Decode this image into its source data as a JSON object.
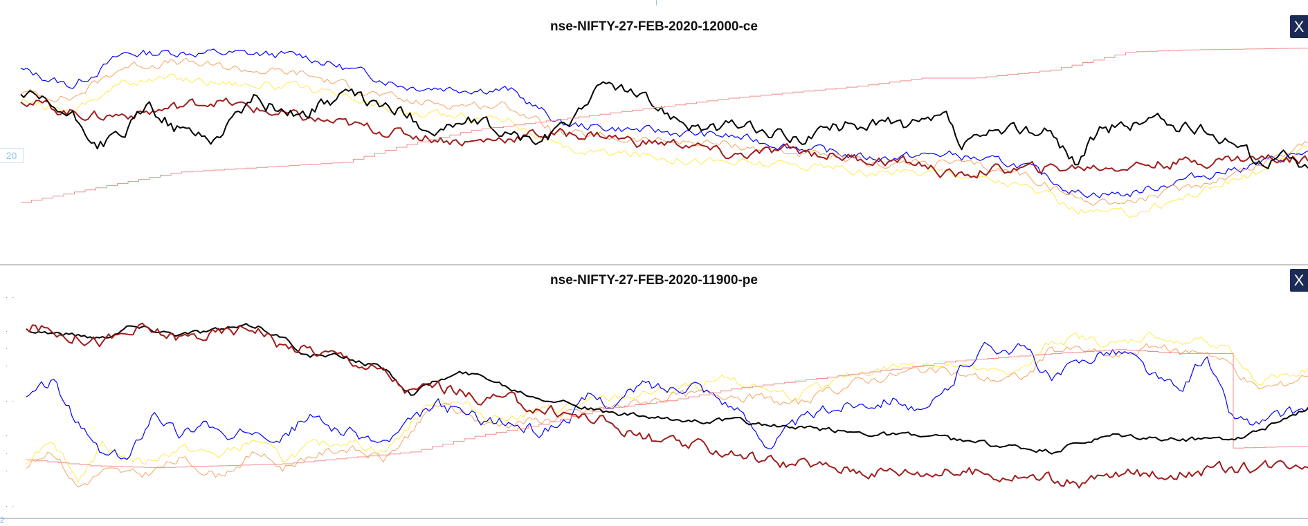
{
  "page": {
    "badge_value": "20",
    "bottom_corner_label": "2",
    "close_label": "X"
  },
  "chart_data": [
    {
      "type": "line",
      "title": "nse-NIFTY-27-FEB-2020-12000-ce",
      "xlabel": "",
      "ylabel": "",
      "ylim": [
        0,
        100
      ],
      "grid": false,
      "series": [
        {
          "color": "#0000ff",
          "width": 1.2,
          "noise": 1.8,
          "x": [
            0,
            4,
            8,
            12,
            18,
            22,
            30,
            38,
            42,
            48,
            55,
            62,
            66,
            72,
            78,
            82,
            86,
            90,
            96,
            100
          ],
          "y": [
            84,
            76,
            92,
            93,
            92,
            91,
            76,
            74,
            57,
            54,
            51,
            44,
            40,
            42,
            36,
            23,
            22,
            29,
            37,
            43
          ]
        },
        {
          "color": "#f4a460",
          "width": 1.0,
          "noise": 1.8,
          "x": [
            0,
            4,
            8,
            12,
            18,
            22,
            30,
            38,
            42,
            48,
            55,
            62,
            66,
            72,
            78,
            82,
            86,
            90,
            96,
            100
          ],
          "y": [
            73,
            70,
            86,
            88,
            84,
            82,
            68,
            66,
            52,
            49,
            47,
            41,
            37,
            38,
            32,
            20,
            18,
            24,
            36,
            49
          ]
        },
        {
          "color": "#ffe94a",
          "width": 1.0,
          "noise": 1.8,
          "x": [
            0,
            4,
            8,
            12,
            18,
            22,
            30,
            38,
            42,
            48,
            55,
            62,
            66,
            72,
            78,
            82,
            86,
            90,
            96,
            100
          ],
          "y": [
            68,
            64,
            78,
            80,
            77,
            75,
            62,
            60,
            44,
            42,
            38,
            36,
            32,
            34,
            26,
            14,
            12,
            20,
            33,
            44
          ]
        },
        {
          "color": "#a01c1c",
          "width": 2.0,
          "noise": 2.2,
          "x": [
            0,
            3,
            6,
            10,
            15,
            20,
            25,
            30,
            35,
            40,
            45,
            48,
            52,
            55,
            60,
            65,
            70,
            72,
            73,
            75,
            80,
            85,
            90,
            95,
            100
          ],
          "y": [
            70,
            64,
            61,
            63,
            69,
            62,
            57,
            52,
            48,
            52,
            52,
            48,
            47,
            41,
            44,
            40,
            37,
            32,
            31,
            34,
            35,
            36,
            38,
            40,
            40
          ]
        },
        {
          "color": "#000000",
          "width": 2.0,
          "noise": 2.8,
          "x": [
            0,
            4,
            6,
            8,
            10,
            12,
            15,
            18,
            20,
            22,
            25,
            28,
            30,
            32,
            35,
            38,
            40,
            42,
            44,
            46,
            48,
            50,
            52,
            54,
            56,
            58,
            60,
            62,
            64,
            66,
            70,
            72,
            73,
            75,
            78,
            80,
            82,
            84,
            86,
            88,
            90,
            92,
            94,
            96,
            98,
            100
          ],
          "y": [
            72,
            60,
            47,
            52,
            66,
            55,
            50,
            70,
            65,
            62,
            72,
            66,
            62,
            54,
            58,
            52,
            48,
            53,
            70,
            78,
            70,
            64,
            58,
            54,
            57,
            52,
            50,
            53,
            56,
            58,
            56,
            60,
            45,
            50,
            55,
            52,
            38,
            55,
            56,
            60,
            55,
            53,
            50,
            38,
            42,
            34
          ]
        },
        {
          "color": "#f08c8c",
          "width": 1.0,
          "noise": 0,
          "step": true,
          "x": [
            0,
            12,
            25,
            30,
            35,
            40,
            45,
            50,
            55,
            60,
            65,
            70,
            74,
            80,
            86,
            90,
            100
          ],
          "y": [
            18,
            33,
            38,
            47,
            54,
            58,
            62,
            66,
            70,
            73,
            76,
            80,
            80,
            84,
            93,
            94,
            95
          ]
        }
      ]
    },
    {
      "type": "line",
      "title": "nse-NIFTY-27-FEB-2020-11900-pe",
      "xlabel": "",
      "ylabel": "",
      "ylim": [
        0,
        100
      ],
      "grid": false,
      "series": [
        {
          "color": "#ffe94a",
          "width": 1.0,
          "noise": 2.0,
          "x": [
            0,
            2,
            4,
            6,
            9,
            12,
            15,
            18,
            20,
            22,
            25,
            28,
            32,
            34,
            36,
            40,
            45,
            50,
            55,
            58,
            60,
            65,
            70,
            75,
            78,
            80,
            82,
            85,
            88,
            90,
            92,
            94,
            96,
            98,
            100
          ],
          "y": [
            22,
            34,
            12,
            30,
            20,
            28,
            24,
            32,
            22,
            28,
            32,
            26,
            54,
            50,
            44,
            46,
            52,
            57,
            62,
            58,
            54,
            66,
            72,
            66,
            68,
            82,
            84,
            80,
            86,
            80,
            84,
            76,
            62,
            65,
            68
          ]
        },
        {
          "color": "#f4a460",
          "width": 1.0,
          "noise": 2.0,
          "x": [
            0,
            2,
            4,
            6,
            9,
            12,
            15,
            18,
            20,
            22,
            25,
            28,
            32,
            34,
            36,
            40,
            45,
            50,
            55,
            58,
            60,
            65,
            70,
            75,
            78,
            80,
            82,
            85,
            88,
            90,
            92,
            94,
            96,
            98,
            100
          ],
          "y": [
            18,
            28,
            8,
            16,
            14,
            22,
            14,
            26,
            18,
            24,
            28,
            22,
            50,
            46,
            40,
            42,
            48,
            54,
            56,
            52,
            50,
            62,
            68,
            63,
            64,
            78,
            78,
            74,
            80,
            76,
            78,
            70,
            58,
            60,
            66
          ]
        },
        {
          "color": "#0000ff",
          "width": 1.2,
          "noise": 2.6,
          "x": [
            0,
            2,
            4,
            6,
            8,
            10,
            12,
            14,
            16,
            18,
            20,
            22,
            25,
            28,
            30,
            32,
            34,
            36,
            38,
            40,
            42,
            44,
            46,
            48,
            50,
            52,
            55,
            57,
            58,
            60,
            62,
            64,
            66,
            68,
            70,
            72,
            73,
            75,
            78,
            80,
            82,
            84,
            86,
            88,
            90,
            92,
            94,
            96,
            98,
            100
          ],
          "y": [
            52,
            62,
            40,
            24,
            22,
            48,
            34,
            42,
            30,
            40,
            34,
            44,
            36,
            30,
            40,
            50,
            46,
            42,
            40,
            36,
            42,
            54,
            50,
            60,
            58,
            62,
            50,
            36,
            30,
            40,
            46,
            50,
            52,
            54,
            44,
            58,
            70,
            80,
            78,
            62,
            70,
            78,
            76,
            64,
            56,
            76,
            44,
            40,
            44,
            48
          ]
        },
        {
          "color": "#f08c8c",
          "width": 1.0,
          "noise": 0,
          "step": true,
          "x": [
            0,
            5,
            10,
            20,
            30,
            35,
            40,
            45,
            50,
            55,
            60,
            65,
            70,
            72,
            76,
            80,
            85,
            90,
            94,
            94.1,
            100
          ],
          "y": [
            22,
            19,
            18,
            20,
            26,
            34,
            40,
            48,
            52,
            58,
            62,
            66,
            70,
            72,
            74,
            76,
            78,
            76,
            76,
            28,
            29
          ]
        },
        {
          "color": "#000000",
          "width": 2.0,
          "noise": 1.1,
          "x": [
            0,
            3,
            6,
            8,
            12,
            15,
            18,
            20,
            22,
            25,
            28,
            30,
            32,
            34,
            36,
            38,
            40,
            42,
            45,
            48,
            50,
            55,
            60,
            65,
            70,
            75,
            80,
            82,
            85,
            90,
            95,
            98,
            100
          ],
          "y": [
            88,
            86,
            84,
            90,
            86,
            88,
            90,
            84,
            75,
            74,
            68,
            56,
            62,
            66,
            64,
            58,
            54,
            52,
            46,
            44,
            42,
            42,
            38,
            36,
            34,
            30,
            26,
            30,
            34,
            32,
            34,
            42,
            48
          ]
        },
        {
          "color": "#a01c1c",
          "width": 2.0,
          "noise": 2.6,
          "x": [
            0,
            3,
            6,
            9,
            12,
            15,
            18,
            20,
            22,
            25,
            28,
            30,
            32,
            35,
            38,
            40,
            45,
            48,
            50,
            55,
            58,
            60,
            65,
            70,
            75,
            80,
            82,
            85,
            90,
            95,
            100
          ],
          "y": [
            90,
            86,
            82,
            88,
            84,
            86,
            90,
            80,
            78,
            74,
            66,
            56,
            60,
            54,
            52,
            48,
            42,
            34,
            30,
            26,
            22,
            20,
            17,
            16,
            15,
            12,
            10,
            14,
            16,
            18,
            22
          ]
        }
      ]
    }
  ]
}
